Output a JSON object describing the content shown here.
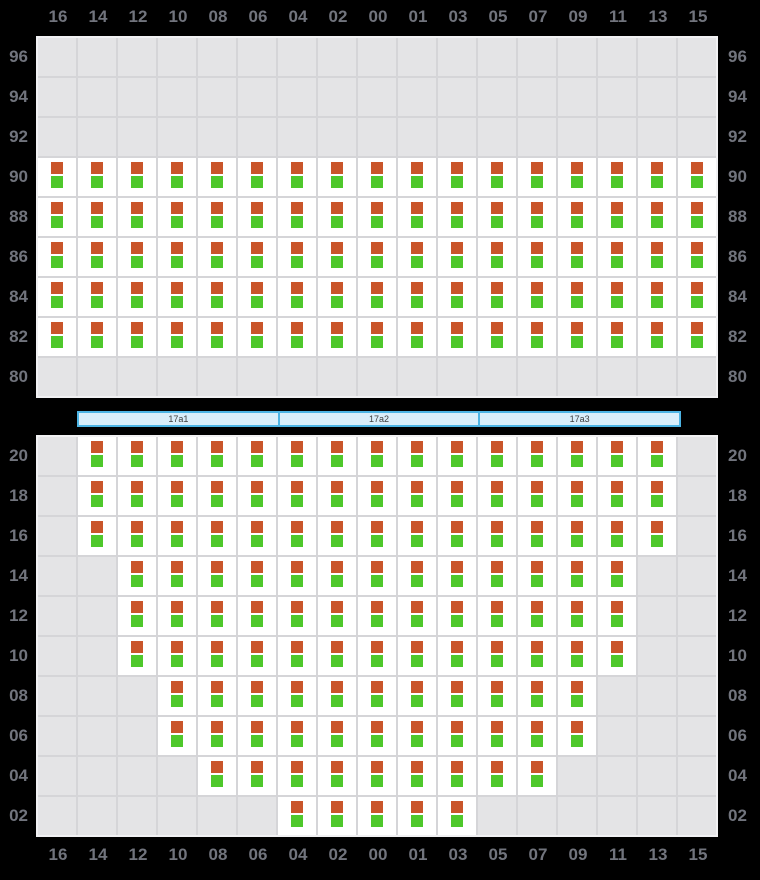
{
  "palette": {
    "background": "#000000",
    "label_color": "#71747d",
    "cell_empty": "#e4e4e6",
    "cell_occupied": "#ffffff",
    "grid_line": "#d5d5d8",
    "panel_border": "#f1f1f3",
    "marker_orange": "#c9552a",
    "marker_green": "#4ec82b",
    "hatch_fill": "#d9eefa",
    "hatch_border": "#4db4e4",
    "hatch_label": "#3d3d3d"
  },
  "columns": [
    "16",
    "14",
    "12",
    "10",
    "08",
    "06",
    "04",
    "02",
    "00",
    "01",
    "03",
    "05",
    "07",
    "09",
    "11",
    "13",
    "15"
  ],
  "deck_panel": {
    "tiers": [
      {
        "tier": "96",
        "occupied": []
      },
      {
        "tier": "94",
        "occupied": []
      },
      {
        "tier": "92",
        "occupied": []
      },
      {
        "tier": "90",
        "occupied": [
          "16",
          "14",
          "12",
          "10",
          "08",
          "06",
          "04",
          "02",
          "00",
          "01",
          "03",
          "05",
          "07",
          "09",
          "11",
          "13",
          "15"
        ]
      },
      {
        "tier": "88",
        "occupied": [
          "16",
          "14",
          "12",
          "10",
          "08",
          "06",
          "04",
          "02",
          "00",
          "01",
          "03",
          "05",
          "07",
          "09",
          "11",
          "13",
          "15"
        ]
      },
      {
        "tier": "86",
        "occupied": [
          "16",
          "14",
          "12",
          "10",
          "08",
          "06",
          "04",
          "02",
          "00",
          "01",
          "03",
          "05",
          "07",
          "09",
          "11",
          "13",
          "15"
        ]
      },
      {
        "tier": "84",
        "occupied": [
          "16",
          "14",
          "12",
          "10",
          "08",
          "06",
          "04",
          "02",
          "00",
          "01",
          "03",
          "05",
          "07",
          "09",
          "11",
          "13",
          "15"
        ]
      },
      {
        "tier": "82",
        "occupied": [
          "16",
          "14",
          "12",
          "10",
          "08",
          "06",
          "04",
          "02",
          "00",
          "01",
          "03",
          "05",
          "07",
          "09",
          "11",
          "13",
          "15"
        ]
      },
      {
        "tier": "80",
        "occupied": []
      }
    ]
  },
  "hatch_covers": [
    {
      "label": "17a1"
    },
    {
      "label": "17a2"
    },
    {
      "label": "17a3"
    }
  ],
  "hold_panel": {
    "tiers": [
      {
        "tier": "20",
        "occupied": [
          "14",
          "12",
          "10",
          "08",
          "06",
          "04",
          "02",
          "00",
          "01",
          "03",
          "05",
          "07",
          "09",
          "11",
          "13"
        ]
      },
      {
        "tier": "18",
        "occupied": [
          "14",
          "12",
          "10",
          "08",
          "06",
          "04",
          "02",
          "00",
          "01",
          "03",
          "05",
          "07",
          "09",
          "11",
          "13"
        ]
      },
      {
        "tier": "16",
        "occupied": [
          "14",
          "12",
          "10",
          "08",
          "06",
          "04",
          "02",
          "00",
          "01",
          "03",
          "05",
          "07",
          "09",
          "11",
          "13"
        ]
      },
      {
        "tier": "14",
        "occupied": [
          "12",
          "10",
          "08",
          "06",
          "04",
          "02",
          "00",
          "01",
          "03",
          "05",
          "07",
          "09",
          "11"
        ]
      },
      {
        "tier": "12",
        "occupied": [
          "12",
          "10",
          "08",
          "06",
          "04",
          "02",
          "00",
          "01",
          "03",
          "05",
          "07",
          "09",
          "11"
        ]
      },
      {
        "tier": "10",
        "occupied": [
          "12",
          "10",
          "08",
          "06",
          "04",
          "02",
          "00",
          "01",
          "03",
          "05",
          "07",
          "09",
          "11"
        ]
      },
      {
        "tier": "08",
        "occupied": [
          "10",
          "08",
          "06",
          "04",
          "02",
          "00",
          "01",
          "03",
          "05",
          "07",
          "09"
        ]
      },
      {
        "tier": "06",
        "occupied": [
          "10",
          "08",
          "06",
          "04",
          "02",
          "00",
          "01",
          "03",
          "05",
          "07",
          "09"
        ]
      },
      {
        "tier": "04",
        "occupied": [
          "08",
          "06",
          "04",
          "02",
          "00",
          "01",
          "03",
          "05",
          "07"
        ]
      },
      {
        "tier": "02",
        "occupied": [
          "04",
          "02",
          "00",
          "01",
          "03"
        ]
      }
    ]
  },
  "slot_markers": {
    "top": "orange-marker",
    "bottom": "green-marker"
  }
}
